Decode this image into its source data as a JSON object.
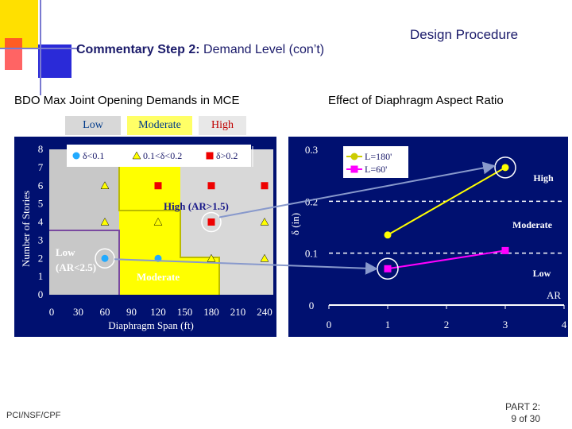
{
  "slide": {
    "title_bold": "Commentary Step 2:",
    "title_rest": " Demand Level (con’t)",
    "section": "Design Procedure",
    "left_heading": "BDO Max Joint Opening Demands in MCE",
    "right_heading": "Effect of Diaphragm Aspect Ratio",
    "footer_left": "PCI/NSF/CPF",
    "footer_page_label": "PART 2:",
    "footer_page_count": "9 of 30"
  },
  "legend": {
    "low": "Low",
    "moderate": "Moderate",
    "high": "High"
  },
  "colors": {
    "background_panel": "#001070",
    "low_region": "#c8c8c8",
    "moderate_region": "#ffff00",
    "high_region": "#d8d8d8",
    "accent_red": "#ee0000",
    "accent_cyan": "#22aaff",
    "line_magenta": "#ff00ff",
    "title": "#1a1a6a"
  },
  "chart_data": [
    {
      "type": "scatter",
      "xlabel": "Diaphragm Span (ft)",
      "ylabel": "Number of Stories",
      "xlim": [
        0,
        240
      ],
      "ylim": [
        0,
        8
      ],
      "x_ticks": [
        "0",
        "30",
        "60",
        "90",
        "120",
        "150",
        "180",
        "210",
        "240"
      ],
      "y_ticks": [
        "0",
        "1",
        "2",
        "3",
        "4",
        "5",
        "6",
        "7",
        "8"
      ],
      "legend_entries": [
        "δ<0.1",
        "0.1<δ<0.2",
        "δ>0.2"
      ],
      "region_labels": {
        "high": "High (AR>1.5)",
        "low_line1": "Low",
        "low_line2": "(AR<2.5)",
        "moderate": "Moderate"
      },
      "series": [
        {
          "name": "δ<0.1",
          "marker": "circle",
          "color": "#22aaff",
          "points": [
            [
              60,
              2
            ],
            [
              120,
              2
            ]
          ]
        },
        {
          "name": "0.1<δ<0.2",
          "marker": "triangle",
          "color": "#ffff00",
          "points": [
            [
              60,
              6
            ],
            [
              60,
              4
            ],
            [
              120,
              4
            ],
            [
              180,
              2
            ],
            [
              240,
              4
            ],
            [
              240,
              2
            ]
          ]
        },
        {
          "name": "δ>0.2",
          "marker": "square",
          "color": "#ee0000",
          "points": [
            [
              120,
              6
            ],
            [
              180,
              6
            ],
            [
              240,
              6
            ],
            [
              180,
              4
            ]
          ]
        }
      ],
      "highlighted_points": [
        [
          60,
          2
        ],
        [
          180,
          4
        ]
      ]
    },
    {
      "type": "line",
      "xlabel": "AR",
      "ylabel": "δ (in)",
      "xlim": [
        0,
        4
      ],
      "ylim": [
        0,
        0.3
      ],
      "x_ticks": [
        "0",
        "1",
        "2",
        "3",
        "4"
      ],
      "y_ticks": [
        "0",
        "0.1",
        "0.2",
        "0.3"
      ],
      "thresholds": [
        0.1,
        0.2
      ],
      "zone_labels": [
        "High",
        "Moderate",
        "Low"
      ],
      "series": [
        {
          "name": "L=180'",
          "color": "#ffff00",
          "points": [
            [
              1,
              0.135
            ],
            [
              3,
              0.265
            ]
          ]
        },
        {
          "name": "L=60'",
          "color": "#ff00ff",
          "points": [
            [
              1,
              0.07
            ],
            [
              3,
              0.105
            ]
          ]
        }
      ],
      "highlighted_points": [
        [
          3,
          0.265
        ],
        [
          1,
          0.07
        ]
      ]
    }
  ]
}
